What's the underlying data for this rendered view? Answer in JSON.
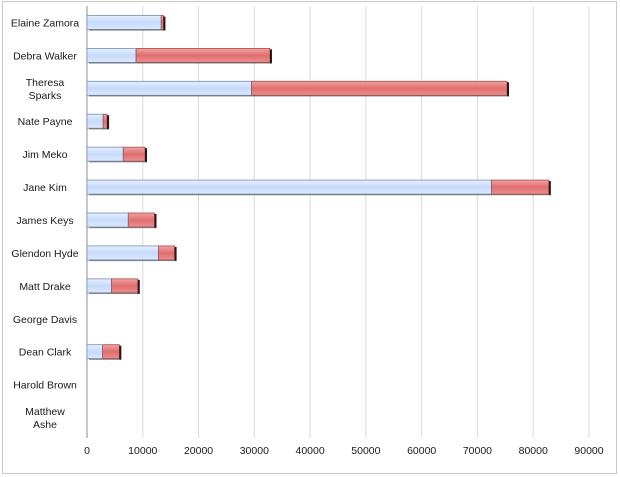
{
  "chart_data": {
    "type": "bar",
    "orientation": "horizontal",
    "stacked": true,
    "title": "",
    "xlabel": "",
    "ylabel": "",
    "xlim": [
      0,
      90000
    ],
    "x_ticks": [
      0,
      10000,
      20000,
      30000,
      40000,
      50000,
      60000,
      70000,
      80000,
      90000
    ],
    "grid": true,
    "legend": "none",
    "categories": [
      "Elaine Zamora",
      "Debra Walker",
      "Theresa Sparks",
      "Nate Payne",
      "Jim Meko",
      "Jane Kim",
      "James Keys",
      "Glendon Hyde",
      "Matt Drake",
      "George Davis",
      "Dean Clark",
      "Harold Brown",
      "Matthew Ashe"
    ],
    "series": [
      {
        "color": "#cfe0fb",
        "values": [
          13300,
          8800,
          29500,
          2900,
          6500,
          72500,
          7400,
          12800,
          4400,
          0,
          2800,
          0,
          0
        ]
      },
      {
        "color": "#e57f7f",
        "values": [
          400,
          24000,
          45800,
          700,
          3900,
          10300,
          4700,
          2900,
          4700,
          0,
          3000,
          0,
          0
        ]
      }
    ]
  }
}
